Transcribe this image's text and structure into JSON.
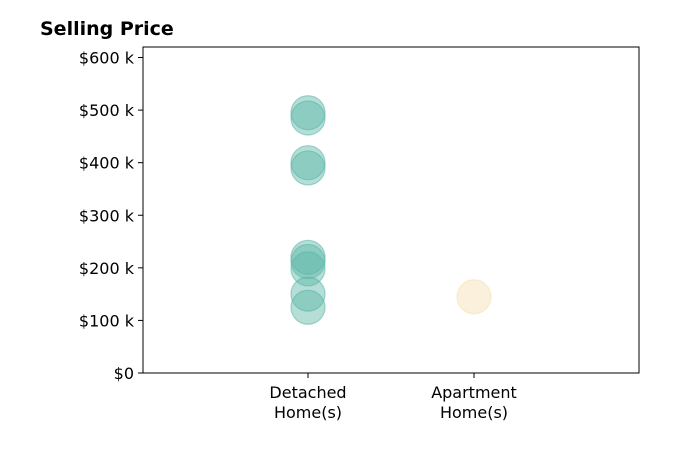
{
  "chart_data": {
    "type": "scatter",
    "title": "Selling Price",
    "xlabel": "",
    "ylabel": "",
    "categories": [
      "Detached\nHome(s)",
      "Apartment\nHome(s)"
    ],
    "ylim": [
      0,
      620000
    ],
    "yticks": [
      {
        "value": 0,
        "label": "$0"
      },
      {
        "value": 100000,
        "label": "$100 k"
      },
      {
        "value": 200000,
        "label": "$200 k"
      },
      {
        "value": 300000,
        "label": "$300 k"
      },
      {
        "value": 400000,
        "label": "$400 k"
      },
      {
        "value": 500000,
        "label": "$500 k"
      },
      {
        "value": 600000,
        "label": "$600 k"
      }
    ],
    "grid": false,
    "series": [
      {
        "category": "Detached\nHome(s)",
        "color": "#5ab5a7",
        "values": [
          495000,
          485000,
          400000,
          390000,
          220000,
          212000,
          198000,
          150000,
          125000
        ]
      },
      {
        "category": "Apartment\nHome(s)",
        "color": "#f5deb0",
        "values": [
          145000
        ]
      }
    ]
  }
}
